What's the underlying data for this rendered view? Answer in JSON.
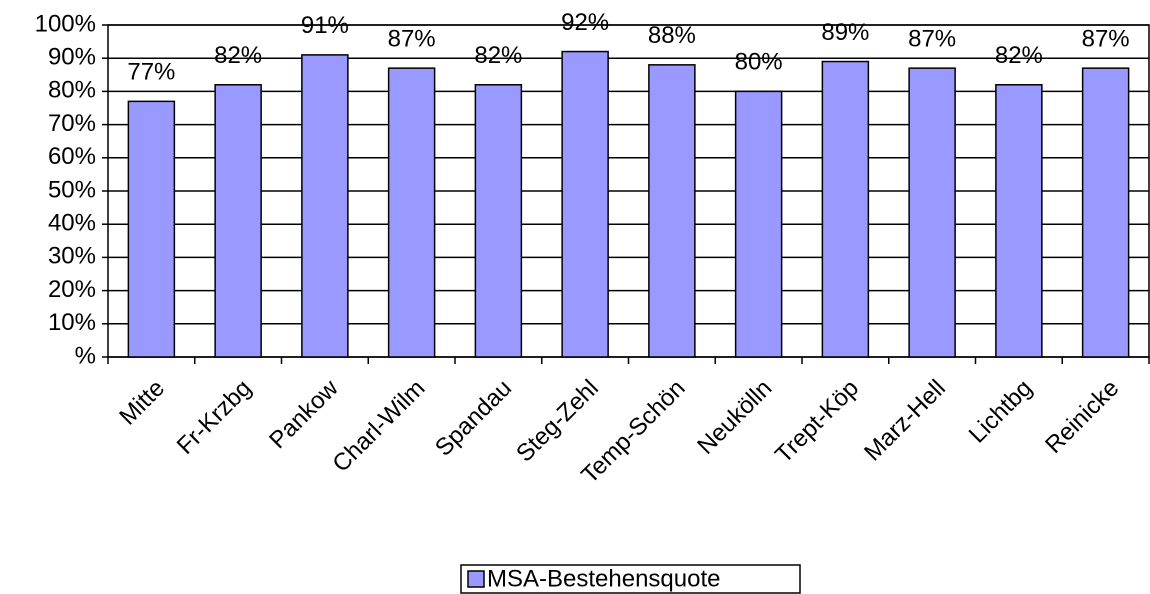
{
  "chart_data": {
    "type": "bar",
    "categories": [
      "Mitte",
      "Fr-Krzbg",
      "Pankow",
      "Charl-Wilm",
      "Spandau",
      "Steg-Zehl",
      "Temp-Schön",
      "Neukölln",
      "Trept-Köp",
      "Marz-Hell",
      "Lichtbg",
      "Reinicke"
    ],
    "series": [
      {
        "name": "MSA-Bestehensquote",
        "color": "#9999ff",
        "values": [
          77,
          82,
          91,
          87,
          82,
          92,
          88,
          80,
          89,
          87,
          82,
          87
        ],
        "value_labels": [
          "77%",
          "82%",
          "91%",
          "87%",
          "82%",
          "92%",
          "88%",
          "80%",
          "89%",
          "87%",
          "82%",
          "87%"
        ]
      }
    ],
    "ylim": [
      0,
      100
    ],
    "yticks": [
      {
        "value": 0,
        "label": "%"
      },
      {
        "value": 10,
        "label": "10%"
      },
      {
        "value": 20,
        "label": "20%"
      },
      {
        "value": 30,
        "label": "30%"
      },
      {
        "value": 40,
        "label": "40%"
      },
      {
        "value": 50,
        "label": "50%"
      },
      {
        "value": 60,
        "label": "60%"
      },
      {
        "value": 70,
        "label": "70%"
      },
      {
        "value": 80,
        "label": "80%"
      },
      {
        "value": 90,
        "label": "90%"
      },
      {
        "value": 100,
        "label": "100%"
      }
    ],
    "grid": true,
    "legend": "bottom"
  }
}
